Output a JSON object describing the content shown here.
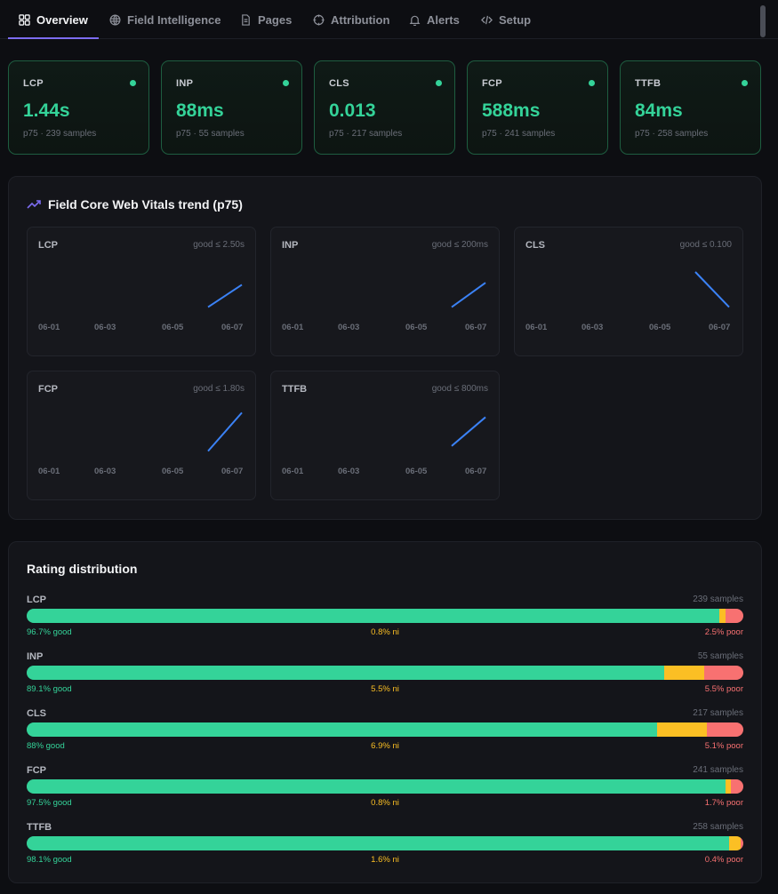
{
  "tabs": [
    {
      "label": "Overview",
      "icon": "grid-icon",
      "active": true
    },
    {
      "label": "Field Intelligence",
      "icon": "globe-icon"
    },
    {
      "label": "Pages",
      "icon": "document-icon"
    },
    {
      "label": "Attribution",
      "icon": "crosshair-icon"
    },
    {
      "label": "Alerts",
      "icon": "bell-icon"
    },
    {
      "label": "Setup",
      "icon": "code-icon"
    }
  ],
  "kpis": [
    {
      "name": "LCP",
      "value": "1.44s",
      "sub": "p75 · 239 samples"
    },
    {
      "name": "INP",
      "value": "88ms",
      "sub": "p75 · 55 samples"
    },
    {
      "name": "CLS",
      "value": "0.013",
      "sub": "p75 · 217 samples"
    },
    {
      "name": "FCP",
      "value": "588ms",
      "sub": "p75 · 241 samples"
    },
    {
      "name": "TTFB",
      "value": "84ms",
      "sub": "p75 · 258 samples"
    }
  ],
  "trend": {
    "title": "Field Core Web Vitals trend (p75)",
    "icon": "trending-up-icon",
    "charts": [
      {
        "name": "LCP",
        "good": "good ≤ 2.50s",
        "ticks": [
          "06-01",
          "06-03",
          "06-05",
          "06-07"
        ],
        "line": {
          "from": 0.8,
          "to": 0.45
        }
      },
      {
        "name": "INP",
        "good": "good ≤ 200ms",
        "ticks": [
          "06-01",
          "06-03",
          "06-05",
          "06-07"
        ],
        "line": {
          "from": 0.8,
          "to": 0.42
        }
      },
      {
        "name": "CLS",
        "good": "good ≤ 0.100",
        "ticks": [
          "06-01",
          "06-03",
          "06-05",
          "06-07"
        ],
        "line": {
          "from": 0.25,
          "to": 0.8
        }
      },
      {
        "name": "FCP",
        "good": "good ≤ 1.80s",
        "ticks": [
          "06-01",
          "06-03",
          "06-05",
          "06-07"
        ],
        "line": {
          "from": 0.8,
          "to": 0.2
        }
      },
      {
        "name": "TTFB",
        "good": "good ≤ 800ms",
        "ticks": [
          "06-01",
          "06-03",
          "06-05",
          "06-07"
        ],
        "line": {
          "from": 0.72,
          "to": 0.27
        }
      }
    ]
  },
  "distribution": {
    "title": "Rating distribution",
    "rows": [
      {
        "name": "LCP",
        "samples": "239 samples",
        "good_label": "96.7% good",
        "ni_label": "0.8% ni",
        "poor_label": "2.5% poor",
        "good": 96.7,
        "ni": 0.8,
        "poor": 2.5
      },
      {
        "name": "INP",
        "samples": "55 samples",
        "good_label": "89.1% good",
        "ni_label": "5.5% ni",
        "poor_label": "5.5% poor",
        "good": 89.1,
        "ni": 5.5,
        "poor": 5.5
      },
      {
        "name": "CLS",
        "samples": "217 samples",
        "good_label": "88% good",
        "ni_label": "6.9% ni",
        "poor_label": "5.1% poor",
        "good": 88,
        "ni": 6.9,
        "poor": 5.1
      },
      {
        "name": "FCP",
        "samples": "241 samples",
        "good_label": "97.5% good",
        "ni_label": "0.8% ni",
        "poor_label": "1.7% poor",
        "good": 97.5,
        "ni": 0.8,
        "poor": 1.7
      },
      {
        "name": "TTFB",
        "samples": "258 samples",
        "good_label": "98.1% good",
        "ni_label": "1.6% ni",
        "poor_label": "0.4% poor",
        "good": 98.1,
        "ni": 1.6,
        "poor": 0.4
      }
    ]
  },
  "colors": {
    "good": "#34d399",
    "ni": "#fbbf24",
    "poor": "#f87171",
    "accent": "#7c6cf0",
    "trend_line": "#3b82f6"
  }
}
